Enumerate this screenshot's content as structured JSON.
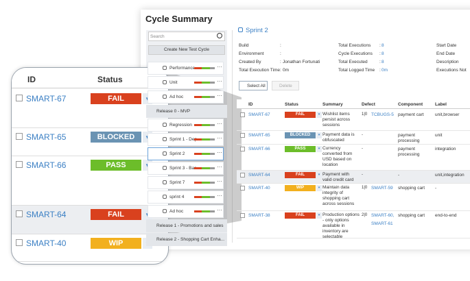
{
  "header": {
    "title": "Cycle Summary"
  },
  "sidebar": {
    "search_placeholder": "Search",
    "create_button": "Create New Test Cycle",
    "groups": [
      {
        "cycles": [
          "Performance",
          "Unit",
          "Ad hoc"
        ]
      },
      {
        "release": "Release 0 - MVP",
        "cycles": [
          "Regression",
          "Sprint 1 - Dep",
          "Sprint 2",
          "Sprint 3 - Bas",
          "Sprint 7",
          "sprint 4",
          "Ad hoc"
        ]
      },
      {
        "release": "Release 1 - Promotions and sales"
      },
      {
        "release": "Release 2 - Shopping Cart Enha..."
      }
    ]
  },
  "cycle": {
    "name": "Sprint 2",
    "fields": [
      [
        {
          "label": "Build"
        },
        {
          "label": "Environment"
        },
        {
          "label": "Created By",
          "value": "Jonathan Fortunati"
        },
        {
          "label": "Total Execution Time",
          "value": "0m"
        }
      ],
      [
        {
          "label": "Total Executions",
          "value": "8"
        },
        {
          "label": "Cycle Executions",
          "value": "8"
        },
        {
          "label": "Total Executed",
          "value": "8"
        },
        {
          "label": "Total Logged Time",
          "value": "0m"
        }
      ],
      [
        {
          "label": "Start Date"
        },
        {
          "label": "End Date"
        },
        {
          "label": "Description"
        },
        {
          "label": "Executions Not"
        }
      ]
    ]
  },
  "toolbar": {
    "select_all": "Select All",
    "delete": "Delete"
  },
  "table": {
    "columns": [
      "ID",
      "Status",
      "Summary",
      "Defect",
      "Component",
      "Label"
    ],
    "rows": [
      {
        "id": "SMART-67",
        "status": "FAIL",
        "summary": "Wishlist items persist across sessions",
        "defect_counts": "1|0",
        "defects": [
          "TCBUGS-5"
        ],
        "component": "payment cart",
        "label": "unit,browser"
      },
      {
        "id": "SMART-65",
        "status": "BLOCKED",
        "summary": "Payment data is obfuscated",
        "defect_counts": "-",
        "component": "payment processing",
        "label": "unit"
      },
      {
        "id": "SMART-66",
        "status": "PASS",
        "summary": "Currency converted from USD based on location",
        "defect_counts": "-",
        "component": "payment processing",
        "label": "integration"
      },
      {
        "id": "SMART-64",
        "status": "FAIL",
        "summary": "Payment with valid credit card",
        "defect_counts": "-",
        "component": "-",
        "label": "unit,integration"
      },
      {
        "id": "SMART-40",
        "status": "WIP",
        "summary": "Maintain data integrity of shopping cart across sessions",
        "defect_counts": "1|0",
        "defects": [
          "SMART-59"
        ],
        "component": "shopping cart",
        "label": "-"
      },
      {
        "id": "SMART-38",
        "status": "FAIL",
        "summary": "Production options - only options available in inventory are selectable",
        "defect_counts": "2|0",
        "defects": [
          "SMART-60,",
          "SMART-61"
        ],
        "component": "shopping cart",
        "label": "end-to-end"
      }
    ]
  },
  "status_colors": {
    "FAIL": "#d9411e",
    "BLOCKED": "#6a93b3",
    "PASS": "#6cbd2a",
    "WIP": "#f2b01e"
  }
}
